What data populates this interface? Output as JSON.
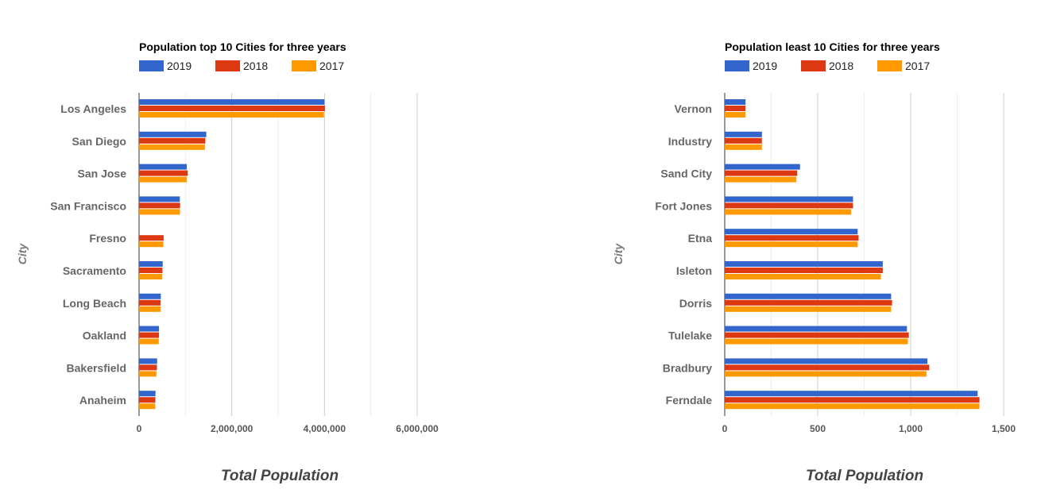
{
  "chart_data": [
    {
      "type": "bar",
      "orientation": "horizontal",
      "title": "Population top 10 Cities for three years",
      "xlabel": "Total Population",
      "ylabel": "City",
      "legend_position": "top-left",
      "grid": true,
      "xlim": [
        0,
        6000000
      ],
      "xticks": [
        "0",
        "2,000,000",
        "4,000,000",
        "6,000,000"
      ],
      "categories": [
        "Los Angeles",
        "San Diego",
        "San Jose",
        "San Francisco",
        "Fresno",
        "Sacramento",
        "Long Beach",
        "Oakland",
        "Bakersfield",
        "Anaheim"
      ],
      "series": [
        {
          "name": "2019",
          "color": "#3366cc",
          "values": [
            4000000,
            1450000,
            1030000,
            880000,
            0,
            510000,
            470000,
            430000,
            390000,
            355000
          ]
        },
        {
          "name": "2018",
          "color": "#dc3912",
          "values": [
            4010000,
            1430000,
            1050000,
            885000,
            530000,
            505000,
            465000,
            428000,
            385000,
            352000
          ]
        },
        {
          "name": "2017",
          "color": "#ff9900",
          "values": [
            3990000,
            1420000,
            1030000,
            882000,
            525000,
            500000,
            468000,
            425000,
            375000,
            350000
          ]
        }
      ]
    },
    {
      "type": "bar",
      "orientation": "horizontal",
      "title": "Population least 10 Cities for three years",
      "xlabel": "Total Population",
      "ylabel": "City",
      "legend_position": "top-left",
      "grid": true,
      "xlim": [
        0,
        1500
      ],
      "xticks": [
        "0",
        "500",
        "1,000",
        "1,500"
      ],
      "categories": [
        "Vernon",
        "Industry",
        "Sand City",
        "Fort Jones",
        "Etna",
        "Isleton",
        "Dorris",
        "Tulelake",
        "Bradbury",
        "Ferndale"
      ],
      "series": [
        {
          "name": "2019",
          "color": "#3366cc",
          "values": [
            112,
            200,
            405,
            690,
            715,
            850,
            895,
            980,
            1090,
            1360
          ]
        },
        {
          "name": "2018",
          "color": "#dc3912",
          "values": [
            112,
            200,
            390,
            690,
            720,
            850,
            900,
            990,
            1100,
            1370
          ]
        },
        {
          "name": "2017",
          "color": "#ff9900",
          "values": [
            112,
            200,
            385,
            680,
            715,
            840,
            895,
            985,
            1085,
            1370
          ]
        }
      ]
    }
  ]
}
